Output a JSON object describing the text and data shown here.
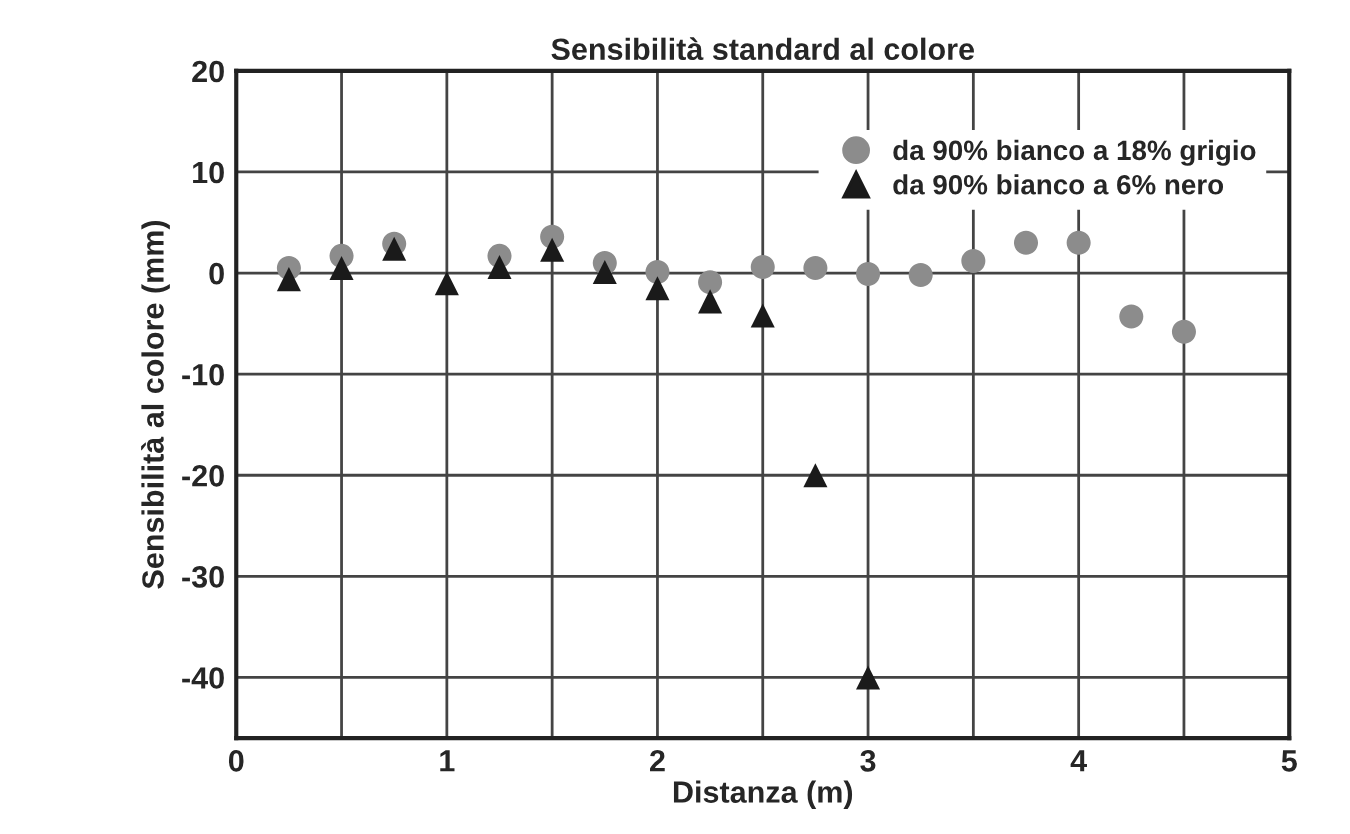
{
  "chart_data": {
    "type": "scatter",
    "title": "Sensibilità standard al colore",
    "xlabel": "Distanza (m)",
    "ylabel": "Sensibilità al colore (mm)",
    "xlim": [
      0,
      5
    ],
    "xticks": [
      0,
      {
        "value": 0.5,
        "label": null
      },
      1,
      {
        "value": 1.5,
        "label": null
      },
      2,
      {
        "value": 2.5,
        "label": null
      },
      3,
      {
        "value": 3.5,
        "label": null
      },
      4,
      {
        "value": 4.5,
        "label": null
      },
      5
    ],
    "ylim": [
      -46,
      20
    ],
    "yticks": [
      -40,
      -30,
      -20,
      -10,
      0,
      10,
      20
    ],
    "grid": true,
    "legend": "top right",
    "series": [
      {
        "name": "da 90% bianco a 18% grigio",
        "color": "#8c8c8c",
        "marker": "circle",
        "x": [
          0.25,
          0.5,
          0.75,
          1.0,
          1.25,
          1.5,
          1.75,
          2.0,
          2.25,
          2.5,
          2.75,
          3.0,
          3.25,
          3.5,
          3.75,
          4.0,
          4.25,
          4.5
        ],
        "values": [
          0.5,
          1.7,
          2.9,
          null,
          1.7,
          3.6,
          1.0,
          0.1,
          -0.9,
          0.6,
          0.5,
          -0.1,
          -0.2,
          1.2,
          3.0,
          3.0,
          -4.3,
          -5.8
        ]
      },
      {
        "name": "da 90% bianco a 6% nero",
        "color": "#1a1a1a",
        "marker": "triangle",
        "x": [
          0.25,
          0.5,
          0.75,
          1.0,
          1.25,
          1.5,
          1.75,
          2.0,
          2.25,
          2.5,
          2.75,
          3.0
        ],
        "values": [
          -0.6,
          0.5,
          2.4,
          -1.0,
          0.6,
          2.3,
          0.1,
          -1.5,
          -2.8,
          -4.2,
          -20,
          -40
        ]
      }
    ]
  }
}
